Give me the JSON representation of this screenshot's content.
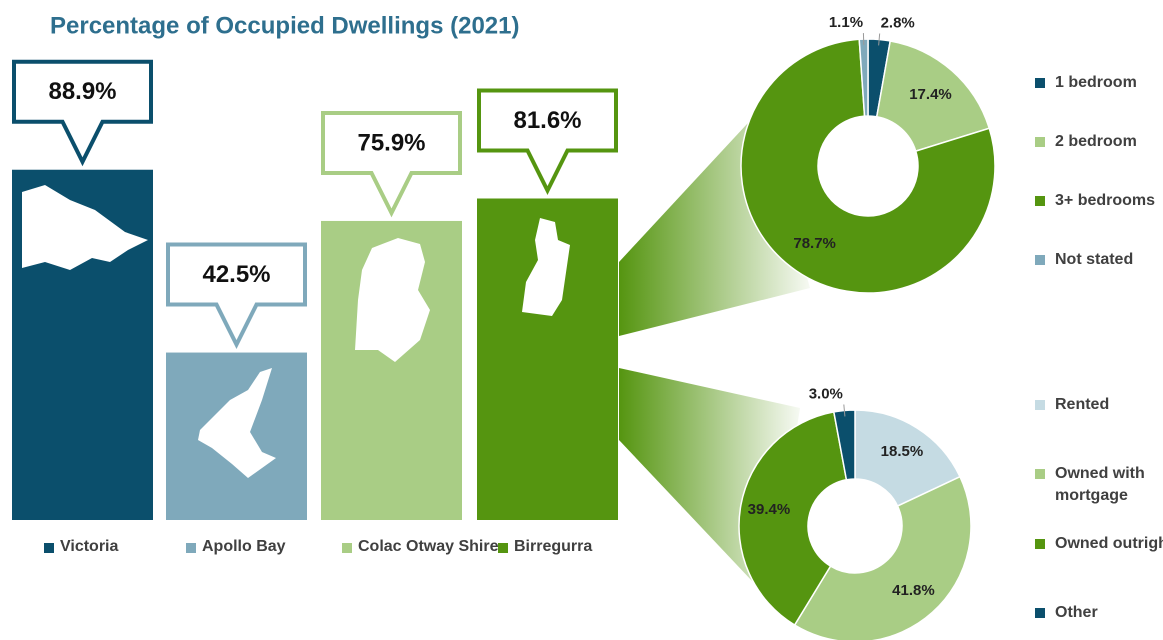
{
  "chart_data": [
    {
      "type": "bar",
      "title": "Percentage of Occupied Dwellings (2021)",
      "categories": [
        "Victoria",
        "Apollo Bay",
        "Colac Otway Shire",
        "Birregurra"
      ],
      "values": [
        88.9,
        42.5,
        75.9,
        81.6
      ],
      "value_labels": [
        "88.9%",
        "42.5%",
        "75.9%",
        "81.6%"
      ],
      "colors": [
        "#0b4f6c",
        "#7fa9bb",
        "#a9cd85",
        "#559510"
      ]
    },
    {
      "type": "pie",
      "categories": [
        "1 bedroom",
        "2 bedroom",
        "3+ bedrooms",
        "Not stated"
      ],
      "values": [
        2.8,
        17.4,
        78.7,
        1.1
      ],
      "value_labels": [
        "2.8%",
        "17.4%",
        "78.7%",
        "1.1%"
      ],
      "colors": [
        "#0b4f6c",
        "#a9cd85",
        "#559510",
        "#7fa9bb"
      ]
    },
    {
      "type": "pie",
      "categories": [
        "Rented",
        "Owned with mortgage",
        "Owned outright",
        "Other"
      ],
      "values": [
        18.5,
        41.8,
        39.4,
        3.0
      ],
      "value_labels": [
        "18.5%",
        "41.8%",
        "39.4%",
        "3.0%"
      ],
      "colors": [
        "#c5dbe3",
        "#a9cd85",
        "#559510",
        "#0b4f6c"
      ]
    }
  ]
}
